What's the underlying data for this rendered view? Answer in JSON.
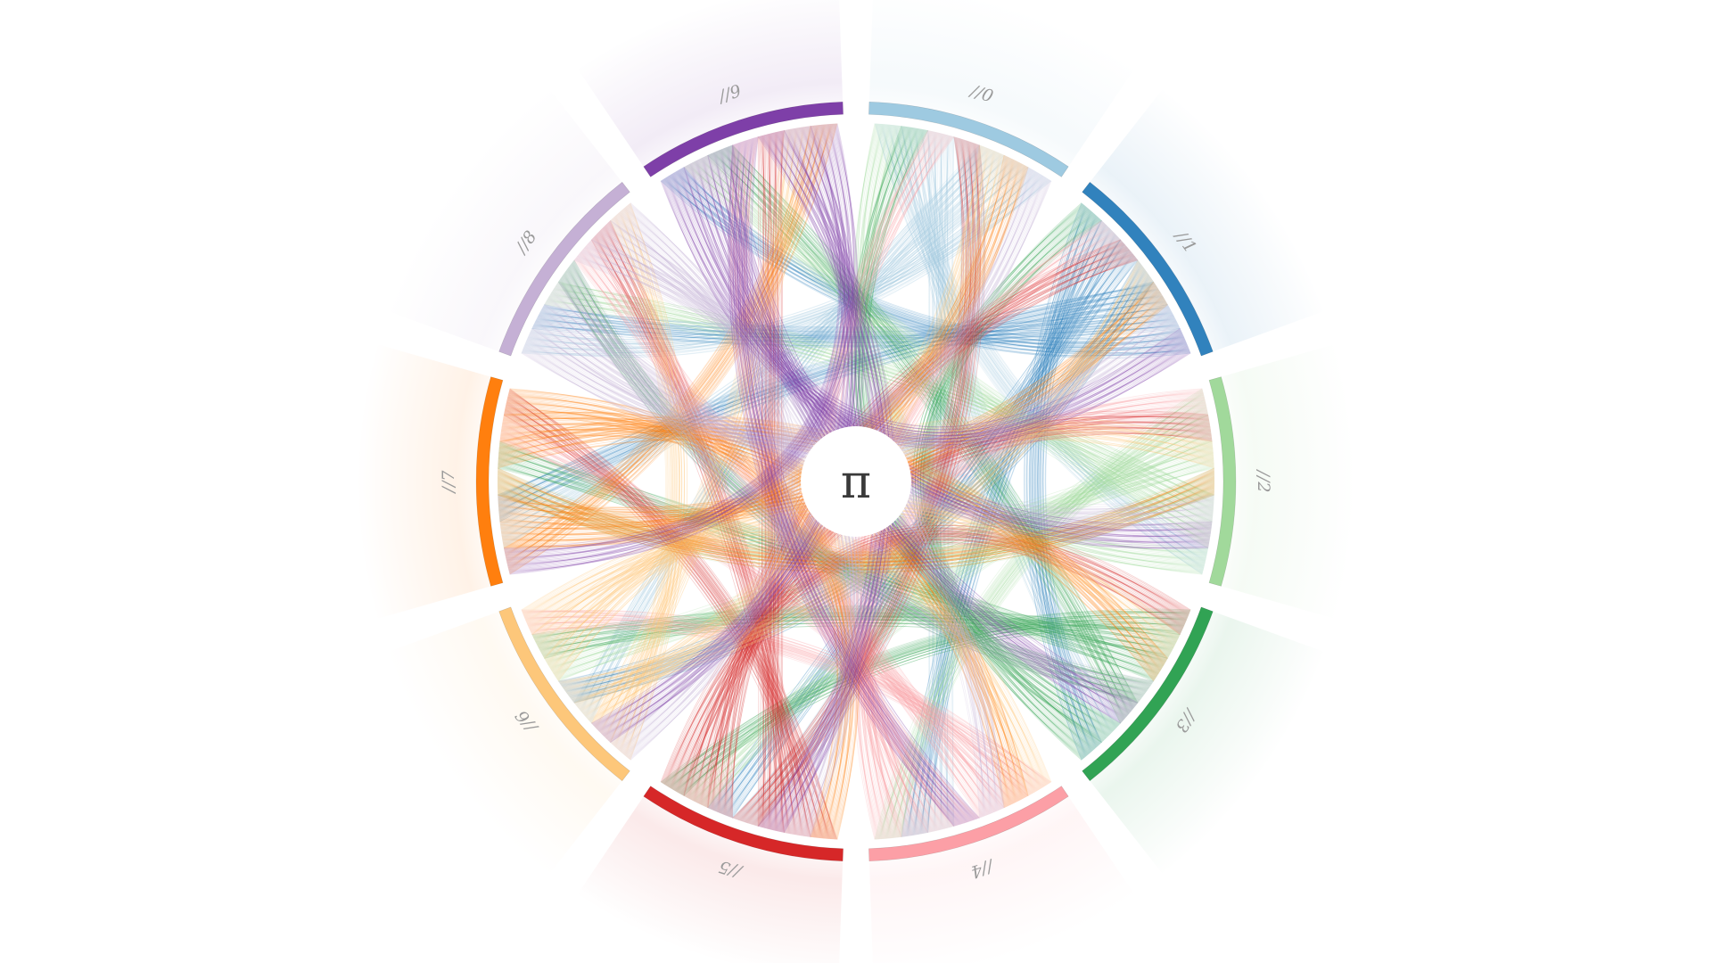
{
  "center_symbol": "π",
  "sectors": [
    {
      "label": "//0",
      "digit": 0,
      "color": "#9ecae1"
    },
    {
      "label": "//1",
      "digit": 1,
      "color": "#3182bd"
    },
    {
      "label": "//2",
      "digit": 2,
      "color": "#a1d99b"
    },
    {
      "label": "//3",
      "digit": 3,
      "color": "#31a354"
    },
    {
      "label": "//4",
      "digit": 4,
      "color": "#fc9fa6"
    },
    {
      "label": "//5",
      "digit": 5,
      "color": "#d62728"
    },
    {
      "label": "//6",
      "digit": 6,
      "color": "#fdc77a"
    },
    {
      "label": "//7",
      "digit": 7,
      "color": "#ff7f0e"
    },
    {
      "label": "//8",
      "digit": 8,
      "color": "#c5b0d5"
    },
    {
      "label": "//9",
      "digit": 9,
      "color": "#7e3fa8"
    }
  ]
}
